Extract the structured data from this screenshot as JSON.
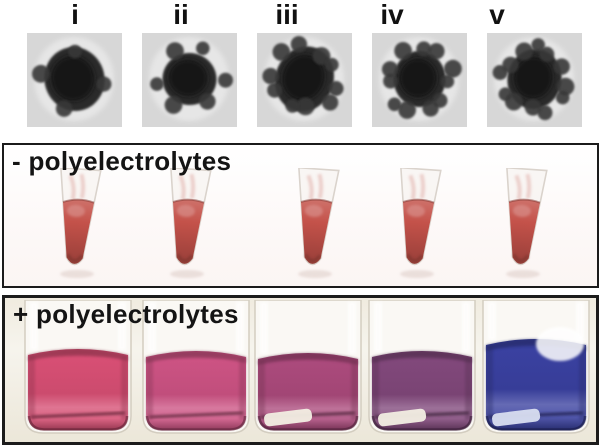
{
  "tem_row": {
    "samples": [
      {
        "label": "i",
        "satellite_count": 4
      },
      {
        "label": "ii",
        "satellite_count": 6
      },
      {
        "label": "iii",
        "satellite_count": 10
      },
      {
        "label": "iv",
        "satellite_count": 11
      },
      {
        "label": "v",
        "satellite_count": 12
      }
    ]
  },
  "minus_panel": {
    "label": "- polyelectrolytes",
    "tube_count": 5,
    "liquid_color": "#c4524a"
  },
  "plus_panel": {
    "label": "+ polyelectrolytes",
    "vials": [
      {
        "color": "#d74f74",
        "stir_bar": false
      },
      {
        "color": "#cc5383",
        "stir_bar": false
      },
      {
        "color": "#ab4a7c",
        "stir_bar": true,
        "stir_bar_color": "#f2eee3"
      },
      {
        "color": "#81487b",
        "stir_bar": true,
        "stir_bar_color": "#f2eee3"
      },
      {
        "color": "#3a41a0",
        "stir_bar": true,
        "stir_bar_color": "#d9def0"
      }
    ]
  }
}
